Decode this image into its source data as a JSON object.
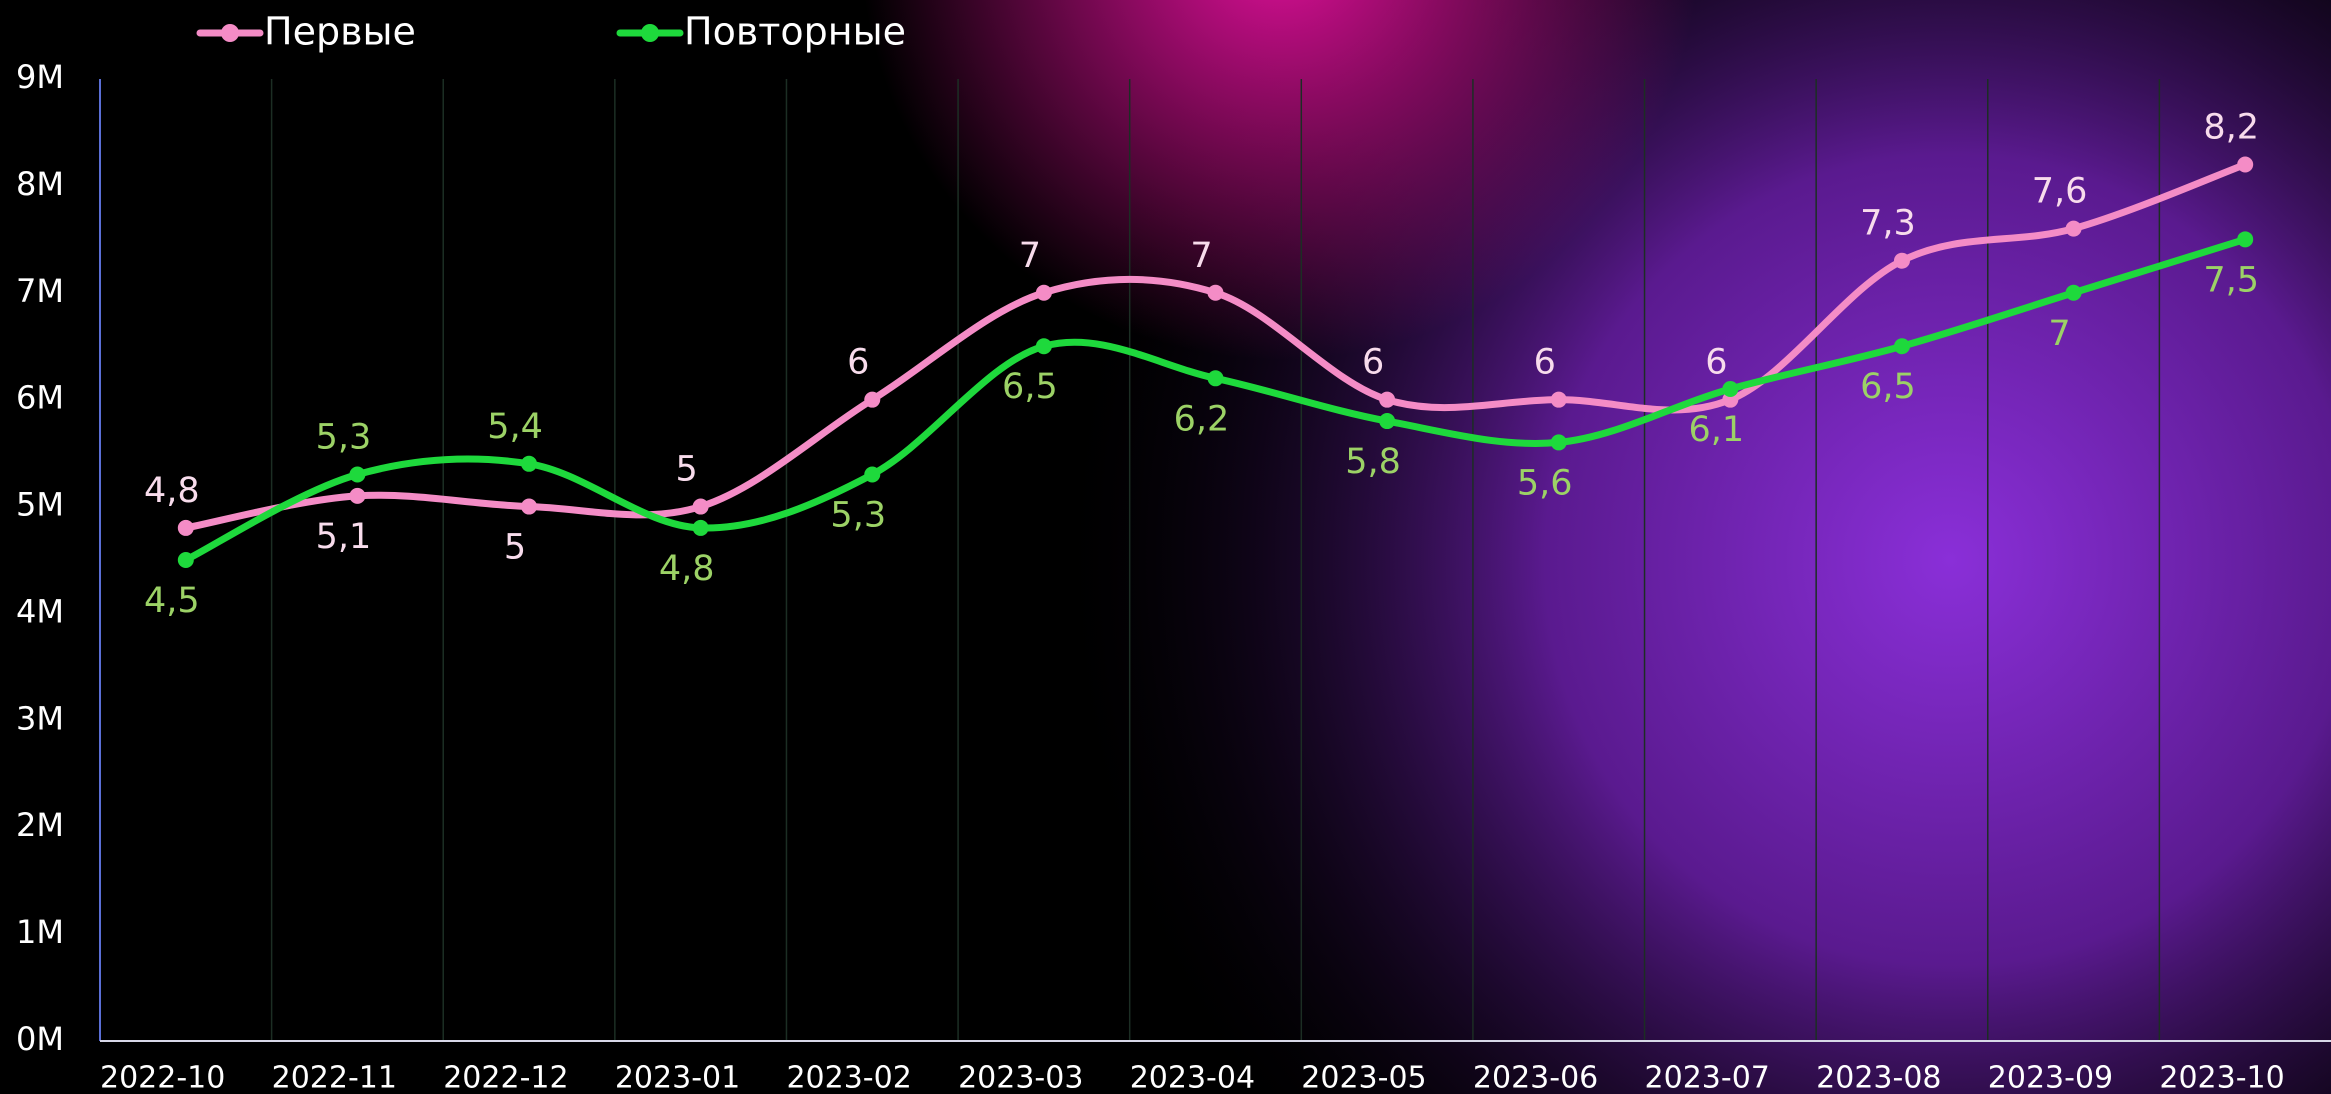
{
  "chart_data": {
    "type": "line",
    "categories": [
      "2022-10",
      "2022-11",
      "2022-12",
      "2023-01",
      "2023-02",
      "2023-03",
      "2023-04",
      "2023-05",
      "2023-06",
      "2023-07",
      "2023-08",
      "2023-09",
      "2023-10"
    ],
    "series": [
      {
        "name": "Первые",
        "color": "#f48cc6",
        "values": [
          4.8,
          5.1,
          5,
          5,
          6,
          7,
          7,
          6,
          6,
          6,
          7.3,
          7.6,
          8.2
        ],
        "value_labels": [
          "4,8",
          "5,1",
          "5",
          "5",
          "6",
          "7",
          "7",
          "6",
          "6",
          "6",
          "7,3",
          "7,6",
          "8,2"
        ]
      },
      {
        "name": "Повторные",
        "color": "#1ed93c",
        "values": [
          4.5,
          5.3,
          5.4,
          4.8,
          5.3,
          6.5,
          6.2,
          5.8,
          5.6,
          6.1,
          6.5,
          7,
          7.5
        ],
        "value_labels": [
          "4,5",
          "5,3",
          "5,4",
          "4,8",
          "5,3",
          "6,5",
          "6,2",
          "5,8",
          "5,6",
          "6,1",
          "6,5",
          "7",
          "7,5"
        ]
      }
    ],
    "ylim": [
      0,
      9
    ],
    "yticks": [
      {
        "value": 0,
        "label": "0M"
      },
      {
        "value": 1,
        "label": "1M"
      },
      {
        "value": 2,
        "label": "2M"
      },
      {
        "value": 3,
        "label": "3M"
      },
      {
        "value": 4,
        "label": "4M"
      },
      {
        "value": 5,
        "label": "5M"
      },
      {
        "value": 6,
        "label": "6M"
      },
      {
        "value": 7,
        "label": "7M"
      },
      {
        "value": 8,
        "label": "8M"
      },
      {
        "value": 9,
        "label": "9M"
      }
    ],
    "grid": true
  }
}
